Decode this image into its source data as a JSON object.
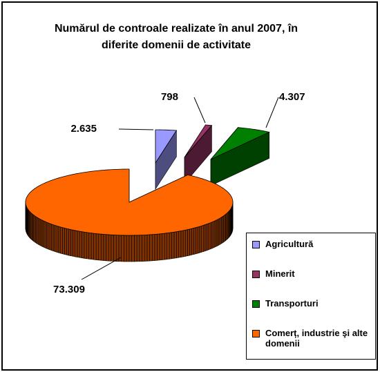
{
  "chart_data": {
    "type": "pie3d",
    "title": "Numărul de controale realizate în anul 2007, în diferite domenii de activitate",
    "categories": [
      "Agricultură",
      "Minerit",
      "Transporturi",
      "Comerț, industrie şi alte domenii"
    ],
    "values": [
      2635,
      798,
      4307,
      73309
    ],
    "value_labels": [
      "2.635",
      "798",
      "4.307",
      "73.309"
    ],
    "colors": [
      "#9999ff",
      "#993366",
      "#008000",
      "#ff6600"
    ],
    "legend": "right"
  }
}
